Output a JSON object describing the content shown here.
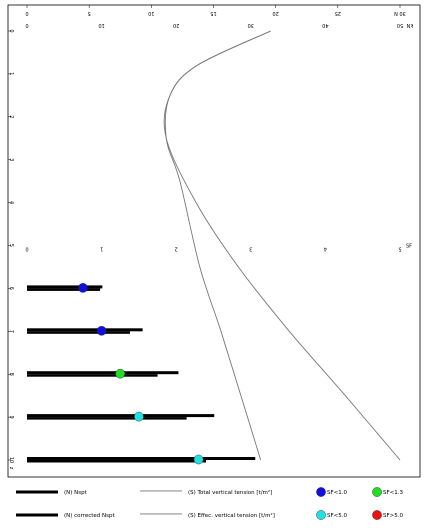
{
  "chart_data": {
    "type": "line",
    "y_axis": {
      "min": 0,
      "max": 10,
      "ticks": [
        0,
        1,
        2,
        3,
        4,
        5,
        6,
        7,
        8,
        9,
        10
      ],
      "labels": [
        "0",
        "1",
        "2",
        "3",
        "4",
        "5",
        "6",
        "7",
        "8",
        "9",
        "10"
      ],
      "end_label": "z"
    },
    "top_axis": {
      "min": 0,
      "max": 30,
      "ticks": [
        0,
        5,
        10,
        15,
        20,
        25,
        30
      ],
      "labels": [
        "0",
        "5",
        "10",
        "15",
        "20",
        "25",
        "30 N"
      ]
    },
    "mid_axis": {
      "min": 0,
      "max": 50,
      "ticks": [
        0,
        10,
        20,
        30,
        40,
        50
      ],
      "labels": [
        "0",
        "10",
        "20",
        "30",
        "40",
        "50"
      ],
      "end_label": "kN"
    },
    "bottom_axis": {
      "min": 0,
      "max": 5,
      "ticks": [
        0,
        1,
        2,
        3,
        4,
        5
      ],
      "labels": [
        "0",
        "1",
        "2",
        "3",
        "4",
        "5"
      ],
      "end_label": "SF"
    },
    "bars": [
      {
        "depth": 6,
        "hspt": 10.1,
        "corrected_hspt": 9.8
      },
      {
        "depth": 7,
        "hspt": 15.5,
        "corrected_hspt": 13.8
      },
      {
        "depth": 8,
        "hspt": 20.3,
        "corrected_hspt": 17.5
      },
      {
        "depth": 9,
        "hspt": 25.1,
        "corrected_hspt": 21.4
      },
      {
        "depth": 10,
        "hspt": 30.6,
        "corrected_hspt": 24.0
      }
    ],
    "sf_markers": [
      {
        "depth": 6,
        "sf": 0.75,
        "color": "#1010e0"
      },
      {
        "depth": 7,
        "sf": 1.0,
        "color": "#1010e0"
      },
      {
        "depth": 8,
        "sf": 1.25,
        "color": "#22dd22"
      },
      {
        "depth": 9,
        "sf": 1.5,
        "color": "#22e0e0"
      },
      {
        "depth": 10,
        "sf": 2.3,
        "color": "#22e0e0"
      }
    ],
    "series": [
      {
        "name": "(S) Total vertical tension [t/m²]",
        "axis": "top",
        "points": [
          [
            19.6,
            0
          ],
          [
            13.7,
            0.8
          ],
          [
            11.5,
            1.5
          ],
          [
            11.2,
            2.5
          ],
          [
            13.6,
            4
          ],
          [
            17.0,
            5.5
          ],
          [
            21.1,
            7
          ],
          [
            25.6,
            8.5
          ],
          [
            30.0,
            10
          ]
        ]
      },
      {
        "name": "(S) Effec. vertical tension [t/m²]",
        "axis": "top",
        "points": [
          [
            19.6,
            0
          ],
          [
            13.7,
            0.8
          ],
          [
            11.5,
            1.5
          ],
          [
            11.2,
            2.5
          ],
          [
            12.3,
            3.5
          ],
          [
            13.9,
            5.5
          ],
          [
            15.6,
            7
          ],
          [
            17.2,
            8.5
          ],
          [
            18.8,
            10
          ]
        ]
      }
    ],
    "legend": [
      {
        "label": "(N) Nspt",
        "style": "thick-line"
      },
      {
        "label": "(S) Total vertical tension [t/m²]",
        "style": "thin-line"
      },
      {
        "label": "SF<1.0",
        "color": "#1010e0"
      },
      {
        "label": "SF<1.3",
        "color": "#22dd22"
      },
      {
        "label": "(N) corrected Nspt",
        "style": "thick-line"
      },
      {
        "label": "(S) Effec. vertical tension [t/m²]",
        "style": "thin-line"
      },
      {
        "label": "SF<5.0",
        "color": "#22e0e0"
      },
      {
        "label": "SF>5.0",
        "color": "#ee1111"
      }
    ]
  }
}
